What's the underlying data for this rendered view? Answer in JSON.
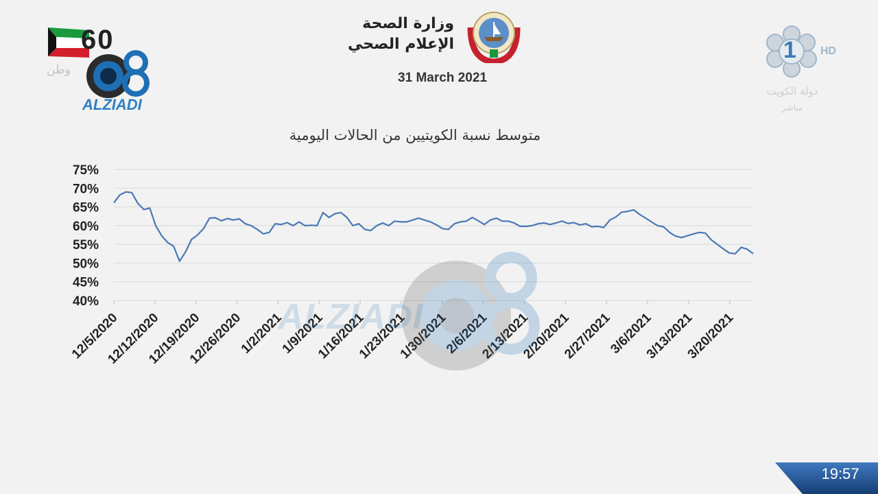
{
  "header": {
    "ministry_line1": "وزارة الصحة",
    "ministry_line2": "الإعلام الصحي",
    "date": "31 March 2021"
  },
  "logos": {
    "ministry_emblem": "kuwait-emblem-icon",
    "flag": "kuwait-flag-icon",
    "flag_number": "60",
    "flag_text": "وطن",
    "watermark_brand": "ALZIADI",
    "watermark_big": "ALZIADI",
    "watermark_q8": "Q8",
    "channel_number": "1",
    "channel_hd": "HD",
    "channel_name": "دولة الكويت",
    "channel_live": "مباشر"
  },
  "clock": {
    "time": "19:57"
  },
  "colors": {
    "line": "#4a78b4",
    "grid": "#d9d9d9",
    "background": "#f2f2f2",
    "clock_bar": "#1e4f8f"
  },
  "chart_data": {
    "type": "line",
    "title": "متوسط نسبة الكويتيين من الحالات اليومية",
    "xlabel": "",
    "ylabel": "",
    "ylim": [
      0.4,
      0.75
    ],
    "yticks": [
      "75%",
      "70%",
      "65%",
      "60%",
      "55%",
      "50%",
      "45%",
      "40%"
    ],
    "ytick_values": [
      0.75,
      0.7,
      0.65,
      0.6,
      0.55,
      0.5,
      0.45,
      0.4
    ],
    "xticks": [
      "12/5/2020",
      "12/12/2020",
      "12/19/2020",
      "12/26/2020",
      "1/2/2021",
      "1/9/2021",
      "1/16/2021",
      "1/23/2021",
      "1/30/2021",
      "2/6/2021",
      "2/13/2021",
      "2/20/2021",
      "2/27/2021",
      "3/6/2021",
      "3/13/2021",
      "3/20/2021"
    ],
    "x_start": "2020-12-05",
    "x_end": "2021-03-24",
    "grid": true,
    "series": [
      {
        "values": [
          0.661,
          0.682,
          0.69,
          0.688,
          0.66,
          0.643,
          0.647,
          0.6,
          0.573,
          0.555,
          0.545,
          0.505,
          0.53,
          0.563,
          0.575,
          0.592,
          0.62,
          0.621,
          0.613,
          0.619,
          0.615,
          0.618,
          0.605,
          0.6,
          0.59,
          0.578,
          0.582,
          0.605,
          0.603,
          0.608,
          0.6,
          0.61,
          0.6,
          0.601,
          0.6,
          0.635,
          0.622,
          0.632,
          0.635,
          0.622,
          0.6,
          0.605,
          0.59,
          0.587,
          0.6,
          0.607,
          0.6,
          0.612,
          0.61,
          0.61,
          0.615,
          0.62,
          0.615,
          0.61,
          0.602,
          0.592,
          0.59,
          0.605,
          0.61,
          0.612,
          0.622,
          0.613,
          0.603,
          0.615,
          0.62,
          0.612,
          0.612,
          0.607,
          0.598,
          0.598,
          0.6,
          0.605,
          0.607,
          0.603,
          0.607,
          0.612,
          0.606,
          0.608,
          0.602,
          0.605,
          0.597,
          0.598,
          0.595,
          0.615,
          0.623,
          0.636,
          0.638,
          0.642,
          0.63,
          0.62,
          0.61,
          0.6,
          0.597,
          0.582,
          0.572,
          0.568,
          0.573,
          0.578,
          0.582,
          0.58,
          0.562,
          0.55,
          0.538,
          0.527,
          0.525,
          0.542,
          0.537,
          0.525
        ]
      }
    ]
  }
}
